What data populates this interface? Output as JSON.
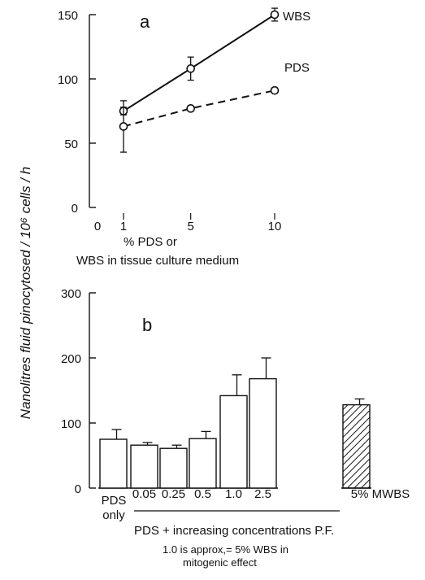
{
  "y_axis_label": "Nanolitres fluid pinocytosed / 10⁶ cells / h",
  "chart_data": [
    {
      "type": "line",
      "panel_label": "a",
      "x": [
        1,
        5,
        10
      ],
      "x_ticks": [
        "0",
        "1",
        "5",
        "10"
      ],
      "xlim": [
        0,
        10
      ],
      "xlabel_line1": "%   PDS or",
      "xlabel_line2": "WBS in tissue culture medium",
      "y_ticks": [
        "0",
        "50",
        "100",
        "150"
      ],
      "ylim": [
        0,
        150
      ],
      "series": [
        {
          "name": "WBS",
          "style": "solid",
          "y": [
            75,
            108,
            150
          ],
          "err": [
            3,
            9,
            5
          ]
        },
        {
          "name": "PDS",
          "style": "dashed",
          "y": [
            63,
            77,
            91
          ],
          "err": [
            20,
            2,
            2
          ]
        }
      ]
    },
    {
      "type": "bar",
      "panel_label": "b",
      "categories": [
        "PDS only",
        "0.05",
        "0.25",
        "0.5",
        "1.0",
        "2.5",
        "5% MWBS"
      ],
      "values": [
        75,
        66,
        61,
        76,
        142,
        168,
        128
      ],
      "errors": [
        15,
        4,
        5,
        11,
        32,
        32,
        9
      ],
      "hatched": [
        false,
        false,
        false,
        false,
        false,
        false,
        true
      ],
      "y_ticks": [
        "0",
        "100",
        "200",
        "300"
      ],
      "ylim": [
        0,
        300
      ],
      "cat_label_pds_line1": "PDS",
      "cat_label_pds_line2": "only",
      "group_label": "PDS + increasing concentrations P.F.",
      "note_line1": "1.0 is approx,= 5%   WBS in",
      "note_line2": "mitogenic  effect"
    }
  ]
}
